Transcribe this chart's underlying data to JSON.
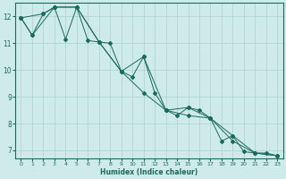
{
  "xlabel": "Humidex (Indice chaleur)",
  "bg_color": "#ceeaea",
  "grid_color": "#aacfcf",
  "line_color": "#1a6b5a",
  "xlim": [
    -0.5,
    23.5
  ],
  "ylim": [
    6.7,
    12.5
  ],
  "xticks": [
    0,
    1,
    2,
    3,
    4,
    5,
    6,
    7,
    8,
    9,
    10,
    11,
    12,
    13,
    14,
    15,
    16,
    17,
    18,
    19,
    20,
    21,
    22,
    23
  ],
  "yticks": [
    7,
    8,
    9,
    10,
    11,
    12
  ],
  "series1_x": [
    0,
    1,
    2,
    3,
    4,
    5,
    6,
    7,
    8,
    9,
    10,
    11,
    12,
    13,
    14,
    15,
    16,
    17,
    18,
    19,
    20,
    21,
    22,
    23
  ],
  "series1_y": [
    11.95,
    11.3,
    12.1,
    12.35,
    11.15,
    12.35,
    11.1,
    11.05,
    11.0,
    9.95,
    9.75,
    10.5,
    9.15,
    8.5,
    8.3,
    8.6,
    8.5,
    8.2,
    7.35,
    7.55,
    6.95,
    6.9,
    6.9,
    6.8
  ],
  "series2_x": [
    0,
    2,
    3,
    5,
    7,
    9,
    11,
    13,
    15,
    17,
    19,
    21,
    23
  ],
  "series2_y": [
    11.95,
    12.1,
    12.35,
    12.35,
    11.05,
    9.95,
    10.5,
    8.5,
    8.6,
    8.2,
    7.55,
    6.9,
    6.8
  ],
  "series3_x": [
    0,
    1,
    3,
    5,
    7,
    9,
    11,
    13,
    15,
    17,
    19,
    21,
    23
  ],
  "series3_y": [
    11.95,
    11.3,
    12.35,
    12.35,
    11.05,
    9.95,
    9.15,
    8.5,
    8.3,
    8.2,
    7.35,
    6.9,
    6.8
  ]
}
